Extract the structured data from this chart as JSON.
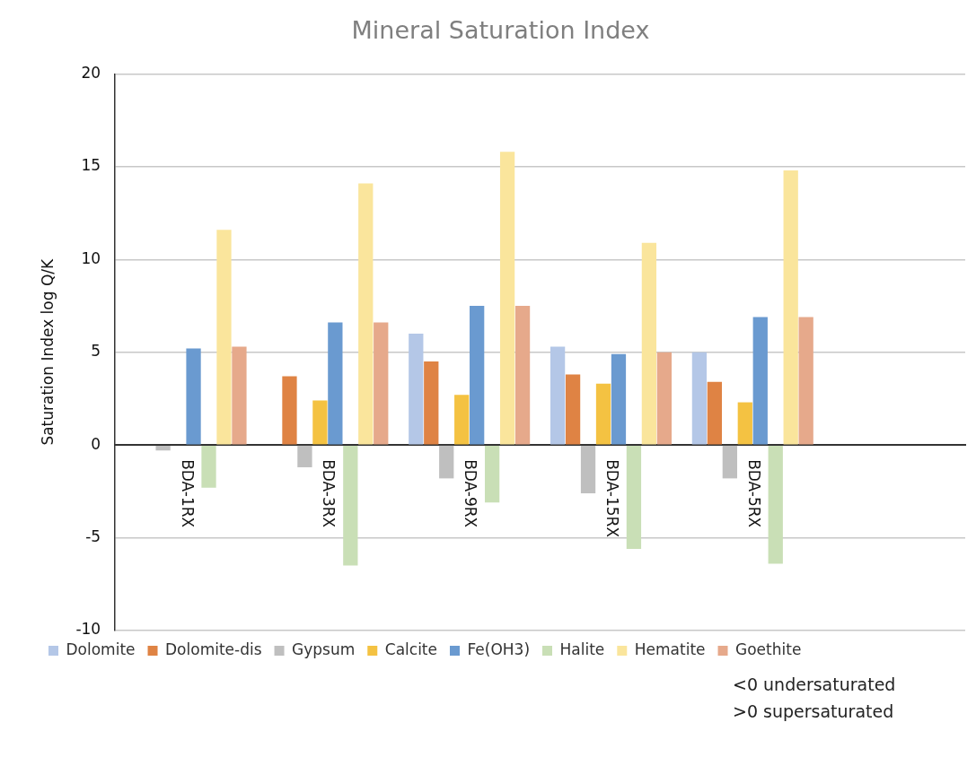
{
  "chart_data": {
    "type": "bar",
    "title": "Mineral Saturation Index",
    "ylabel": "Saturation Index log Q/K",
    "categories": [
      "BDA-1RX",
      "BDA-3RX",
      "BDA-9RX",
      "BDA-15RX",
      "BDA-5RX",
      null
    ],
    "series": [
      {
        "name": "Dolomite",
        "color": "#b4c7e7",
        "values": [
          null,
          null,
          6.0,
          5.3,
          5.0,
          null
        ]
      },
      {
        "name": "Dolomite-dis",
        "color": "#df8344",
        "values": [
          null,
          3.7,
          4.5,
          3.8,
          3.4,
          null
        ]
      },
      {
        "name": "Gypsum",
        "color": "#bfbfbf",
        "values": [
          -0.3,
          -1.2,
          -1.8,
          -2.6,
          -1.8,
          null
        ]
      },
      {
        "name": "Calcite",
        "color": "#f4c242",
        "values": [
          null,
          2.4,
          2.7,
          3.3,
          2.3,
          null
        ]
      },
      {
        "name": "Fe(OH3)",
        "color": "#6a9ad0",
        "values": [
          5.2,
          6.6,
          7.5,
          4.9,
          6.9,
          null
        ]
      },
      {
        "name": "Halite",
        "color": "#c9dfb6",
        "values": [
          -2.3,
          -6.5,
          -3.1,
          -5.6,
          -6.4,
          null
        ]
      },
      {
        "name": "Hematite",
        "color": "#fae59c",
        "values": [
          11.6,
          14.1,
          15.8,
          10.9,
          14.8,
          null
        ]
      },
      {
        "name": "Goethite",
        "color": "#e6a98b",
        "values": [
          5.3,
          6.6,
          7.5,
          5.0,
          6.9,
          null
        ]
      }
    ],
    "ylim": [
      -10,
      20
    ],
    "yticks": [
      -10,
      -5,
      0,
      5,
      10,
      15,
      20
    ],
    "grid": "y",
    "legend": "bottom",
    "annotations": [
      "<0 undersaturated",
      ">0 supersaturated"
    ]
  }
}
